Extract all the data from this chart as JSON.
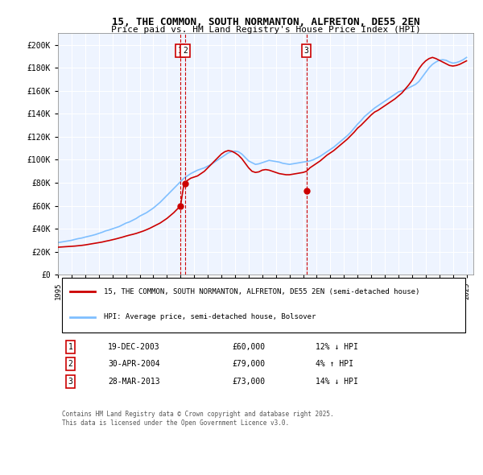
{
  "title": "15, THE COMMON, SOUTH NORMANTON, ALFRETON, DE55 2EN",
  "subtitle": "Price paid vs. HM Land Registry's House Price Index (HPI)",
  "legend_property": "15, THE COMMON, SOUTH NORMANTON, ALFRETON, DE55 2EN (semi-detached house)",
  "legend_hpi": "HPI: Average price, semi-detached house, Bolsover",
  "footer": "Contains HM Land Registry data © Crown copyright and database right 2025.\nThis data is licensed under the Open Government Licence v3.0.",
  "ylim": [
    0,
    210000
  ],
  "yticks": [
    0,
    20000,
    40000,
    60000,
    80000,
    100000,
    120000,
    140000,
    160000,
    180000,
    200000
  ],
  "ytick_labels": [
    "£0",
    "£20K",
    "£40K",
    "£60K",
    "£80K",
    "£100K",
    "£120K",
    "£140K",
    "£160K",
    "£180K",
    "£200K"
  ],
  "sales": [
    {
      "num": 1,
      "date": "19-DEC-2003",
      "price": 60000,
      "pct": "12%",
      "dir": "↓",
      "year_x": 2003.97
    },
    {
      "num": 2,
      "date": "30-APR-2004",
      "price": 79000,
      "pct": "4%",
      "dir": "↑",
      "year_x": 2004.33
    },
    {
      "num": 3,
      "date": "28-MAR-2013",
      "price": 73000,
      "pct": "14%",
      "dir": "↓",
      "year_x": 2013.24
    }
  ],
  "sale_marker_color": "#cc0000",
  "hpi_line_color": "#7fbfff",
  "property_line_color": "#cc0000",
  "bg_color": "#eef4ff",
  "plot_bg": "#eef4ff",
  "grid_color": "#ffffff",
  "vline_color": "#cc0000",
  "box_color": "#cc0000",
  "hpi_years": [
    1995,
    1995.25,
    1995.5,
    1995.75,
    1996,
    1996.25,
    1996.5,
    1996.75,
    1997,
    1997.25,
    1997.5,
    1997.75,
    1998,
    1998.25,
    1998.5,
    1998.75,
    1999,
    1999.25,
    1999.5,
    1999.75,
    2000,
    2000.25,
    2000.5,
    2000.75,
    2001,
    2001.25,
    2001.5,
    2001.75,
    2002,
    2002.25,
    2002.5,
    2002.75,
    2003,
    2003.25,
    2003.5,
    2003.75,
    2004,
    2004.25,
    2004.5,
    2004.75,
    2005,
    2005.25,
    2005.5,
    2005.75,
    2006,
    2006.25,
    2006.5,
    2006.75,
    2007,
    2007.25,
    2007.5,
    2007.75,
    2008,
    2008.25,
    2008.5,
    2008.75,
    2009,
    2009.25,
    2009.5,
    2009.75,
    2010,
    2010.25,
    2010.5,
    2010.75,
    2011,
    2011.25,
    2011.5,
    2011.75,
    2012,
    2012.25,
    2012.5,
    2012.75,
    2013,
    2013.25,
    2013.5,
    2013.75,
    2014,
    2014.25,
    2014.5,
    2014.75,
    2015,
    2015.25,
    2015.5,
    2015.75,
    2016,
    2016.25,
    2016.5,
    2016.75,
    2017,
    2017.25,
    2017.5,
    2017.75,
    2018,
    2018.25,
    2018.5,
    2018.75,
    2019,
    2019.25,
    2019.5,
    2019.75,
    2020,
    2020.25,
    2020.5,
    2020.75,
    2021,
    2021.25,
    2021.5,
    2021.75,
    2022,
    2022.25,
    2022.5,
    2022.75,
    2023,
    2023.25,
    2023.5,
    2023.75,
    2024,
    2024.25,
    2024.5,
    2024.75,
    2025
  ],
  "hpi_values": [
    28000,
    28500,
    29000,
    29500,
    30000,
    30800,
    31500,
    32000,
    32800,
    33500,
    34200,
    35000,
    36000,
    37000,
    38200,
    39000,
    40000,
    41000,
    42000,
    43500,
    45000,
    46000,
    47500,
    49000,
    51000,
    52500,
    54000,
    56000,
    58000,
    60500,
    63000,
    66000,
    69000,
    72000,
    75000,
    78000,
    81000,
    84000,
    86000,
    88000,
    89500,
    91000,
    92000,
    93000,
    94500,
    96000,
    98000,
    100000,
    102000,
    104000,
    106000,
    107000,
    107500,
    107000,
    105000,
    102000,
    99000,
    97500,
    96000,
    96500,
    97500,
    98500,
    99500,
    99000,
    98500,
    98000,
    97000,
    96500,
    96000,
    96500,
    97000,
    97500,
    98000,
    98500,
    99000,
    100000,
    101500,
    103000,
    105000,
    107000,
    109000,
    111000,
    113500,
    116000,
    118500,
    121000,
    124000,
    127500,
    131000,
    134000,
    137500,
    140000,
    142500,
    145000,
    147000,
    149000,
    151000,
    153000,
    155000,
    157000,
    159000,
    160000,
    161000,
    162500,
    164000,
    165500,
    168000,
    172000,
    176000,
    180000,
    183000,
    185000,
    186500,
    187000,
    186500,
    185000,
    184000,
    184500,
    185500,
    187000,
    189000
  ],
  "prop_years": [
    1995,
    1995.25,
    1995.5,
    1995.75,
    1996,
    1996.25,
    1996.5,
    1996.75,
    1997,
    1997.25,
    1997.5,
    1997.75,
    1998,
    1998.25,
    1998.5,
    1998.75,
    1999,
    1999.25,
    1999.5,
    1999.75,
    2000,
    2000.25,
    2000.5,
    2000.75,
    2001,
    2001.25,
    2001.5,
    2001.75,
    2002,
    2002.25,
    2002.5,
    2002.75,
    2003,
    2003.25,
    2003.5,
    2003.75,
    2004,
    2004.25,
    2004.5,
    2004.75,
    2005,
    2005.25,
    2005.5,
    2005.75,
    2006,
    2006.25,
    2006.5,
    2006.75,
    2007,
    2007.25,
    2007.5,
    2007.75,
    2008,
    2008.25,
    2008.5,
    2008.75,
    2009,
    2009.25,
    2009.5,
    2009.75,
    2010,
    2010.25,
    2010.5,
    2010.75,
    2011,
    2011.25,
    2011.5,
    2011.75,
    2012,
    2012.25,
    2012.5,
    2012.75,
    2013,
    2013.25,
    2013.5,
    2013.75,
    2014,
    2014.25,
    2014.5,
    2014.75,
    2015,
    2015.25,
    2015.5,
    2015.75,
    2016,
    2016.25,
    2016.5,
    2016.75,
    2017,
    2017.25,
    2017.5,
    2017.75,
    2018,
    2018.25,
    2018.5,
    2018.75,
    2019,
    2019.25,
    2019.5,
    2019.75,
    2020,
    2020.25,
    2020.5,
    2020.75,
    2021,
    2021.25,
    2021.5,
    2021.75,
    2022,
    2022.25,
    2022.5,
    2022.75,
    2023,
    2023.25,
    2023.5,
    2023.75,
    2024,
    2024.25,
    2024.5,
    2024.75,
    2025
  ],
  "prop_values": [
    24000,
    24200,
    24400,
    24600,
    24800,
    25000,
    25300,
    25600,
    26000,
    26500,
    27000,
    27500,
    28000,
    28500,
    29200,
    29800,
    30500,
    31200,
    32000,
    32800,
    33700,
    34500,
    35200,
    36000,
    37000,
    38000,
    39200,
    40500,
    42000,
    43500,
    45000,
    47000,
    49000,
    51500,
    54000,
    57000,
    60000,
    79000,
    82000,
    84000,
    85000,
    86000,
    88000,
    90000,
    93000,
    96000,
    99000,
    102000,
    105000,
    107000,
    108000,
    107500,
    106000,
    104000,
    101000,
    97000,
    93000,
    90000,
    89000,
    89500,
    91000,
    91500,
    91000,
    90000,
    89000,
    88000,
    87500,
    87000,
    87000,
    87500,
    88000,
    88500,
    89000,
    90000,
    93000,
    95000,
    97000,
    99000,
    101500,
    104000,
    106000,
    108000,
    110500,
    113000,
    115500,
    118000,
    121000,
    124000,
    127500,
    130000,
    133000,
    136000,
    139000,
    141500,
    143000,
    145000,
    147000,
    149000,
    151000,
    153000,
    155500,
    158000,
    161500,
    165000,
    169000,
    174000,
    179000,
    183000,
    186000,
    188000,
    189000,
    188000,
    186500,
    185000,
    183500,
    182000,
    181500,
    182000,
    183000,
    184500,
    186000
  ],
  "xtick_years": [
    1995,
    1996,
    1997,
    1998,
    1999,
    2000,
    2001,
    2002,
    2003,
    2004,
    2005,
    2006,
    2007,
    2008,
    2009,
    2010,
    2011,
    2012,
    2013,
    2014,
    2015,
    2016,
    2017,
    2018,
    2019,
    2020,
    2021,
    2022,
    2023,
    2024,
    2025
  ]
}
